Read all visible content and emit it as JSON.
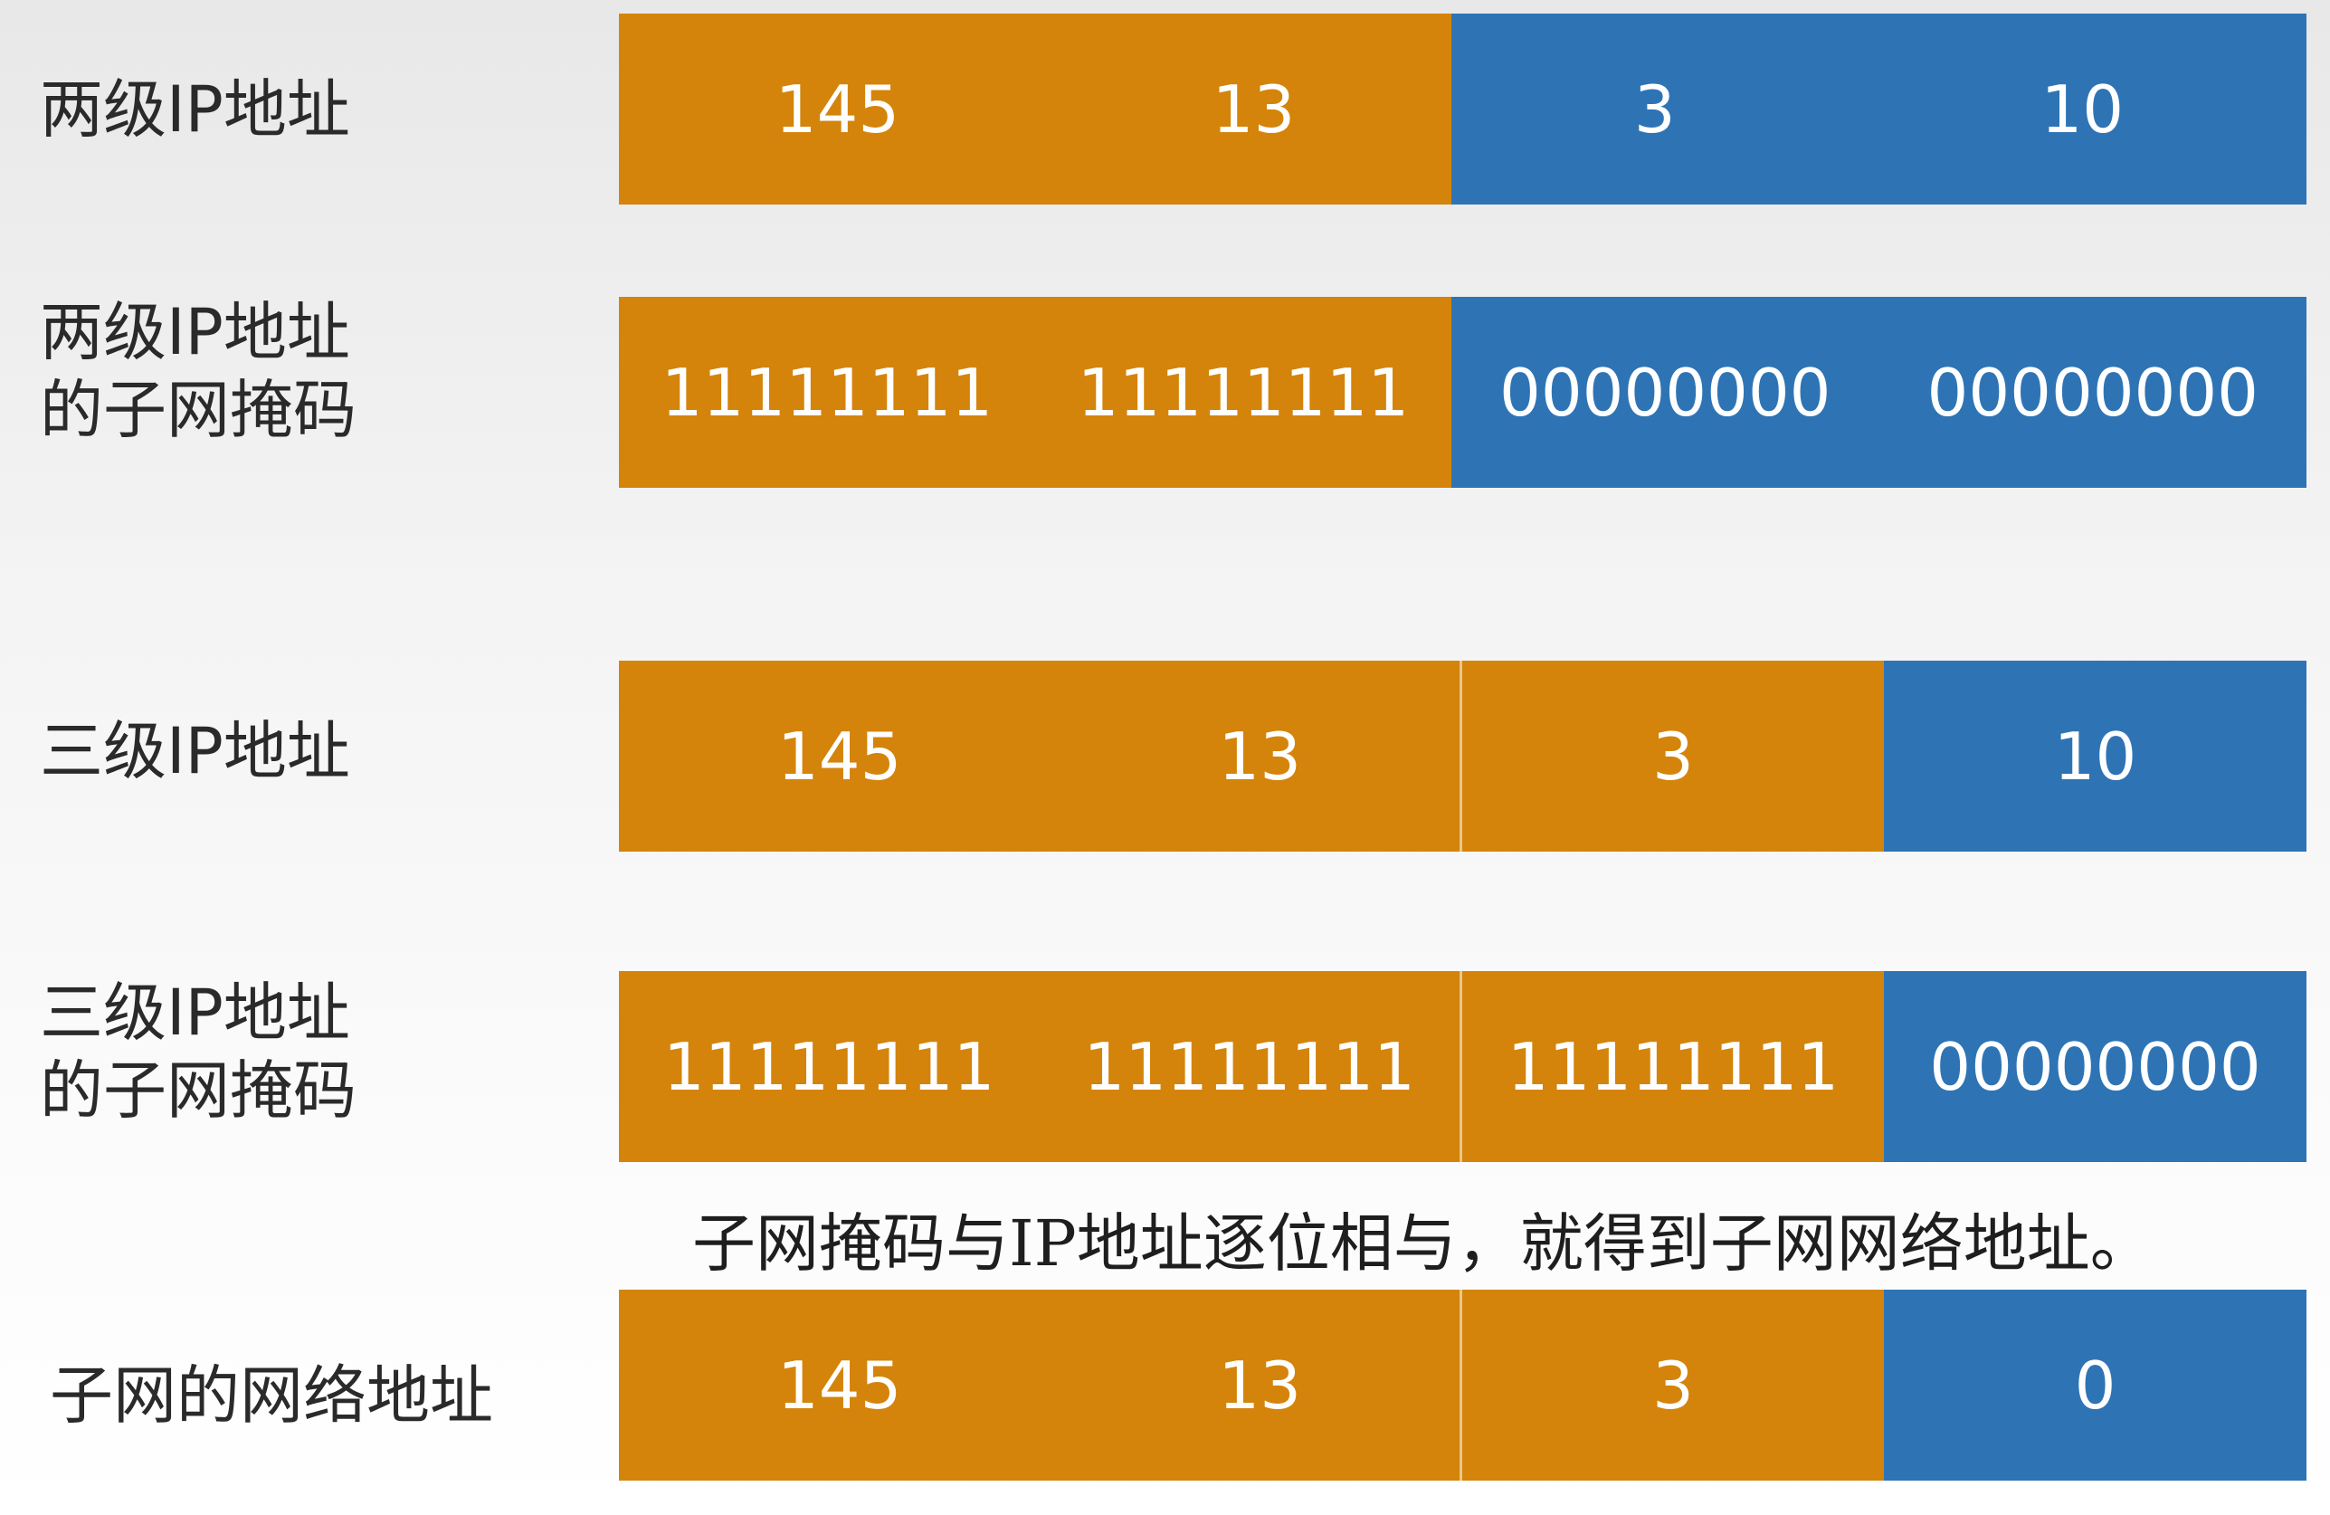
{
  "colors": {
    "network_part": "#d4840b",
    "host_part": "#2e74b5"
  },
  "rows": [
    {
      "label": "两级IP地址",
      "segments": [
        {
          "part": "network",
          "values": [
            "145",
            "13"
          ]
        },
        {
          "part": "host",
          "values": [
            "3",
            "10"
          ]
        }
      ]
    },
    {
      "label": "两级IP地址\n的子网掩码",
      "segments": [
        {
          "part": "network",
          "values": [
            "11111111",
            "11111111"
          ]
        },
        {
          "part": "host",
          "values": [
            "00000000",
            "00000000"
          ]
        }
      ]
    },
    {
      "label": "三级IP地址",
      "segments": [
        {
          "part": "network",
          "values": [
            "145",
            "13"
          ]
        },
        {
          "part": "subnet",
          "values": [
            "3"
          ]
        },
        {
          "part": "host",
          "values": [
            "10"
          ]
        }
      ]
    },
    {
      "label": "三级IP地址\n的子网掩码",
      "segments": [
        {
          "part": "network",
          "values": [
            "11111111",
            "11111111"
          ]
        },
        {
          "part": "subnet",
          "values": [
            "11111111"
          ]
        },
        {
          "part": "host",
          "values": [
            "00000000"
          ]
        }
      ]
    },
    {
      "label": "子网的网络地址",
      "segments": [
        {
          "part": "network",
          "values": [
            "145",
            "13"
          ]
        },
        {
          "part": "subnet",
          "values": [
            "3"
          ]
        },
        {
          "part": "host",
          "values": [
            "0"
          ]
        }
      ]
    }
  ],
  "note": "子网掩码与IP地址逐位相与，就得到子网网络地址。"
}
